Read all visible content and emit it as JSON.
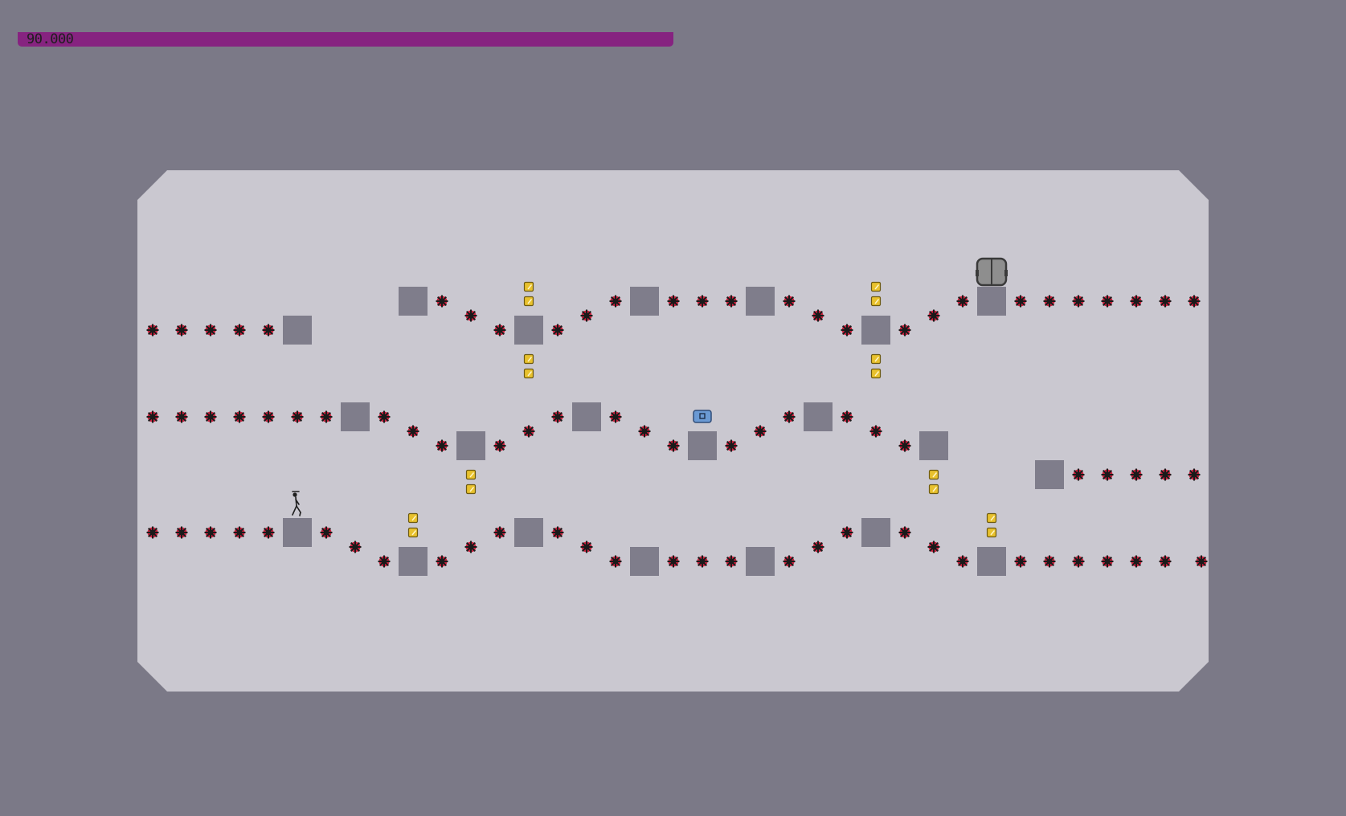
{
  "hud": {
    "time_remaining": "90.000"
  },
  "colors": {
    "background": "#7b7987",
    "arena": "#cac8d0",
    "timer_bar": "#862380",
    "tile": "#7f7d8b",
    "mine_core": "#1a1a1a",
    "mine_glow": "#c8102e",
    "gold": "#e8c12d",
    "exit_door": "#8e8e8e",
    "exit_switch": "#6b9ad4"
  },
  "icons": {
    "player": "ninja-stick-figure-icon",
    "mine": "toggle-mine-icon",
    "gold": "gold-square-icon",
    "exit_door": "exit-door-icon",
    "exit_switch": "exit-switch-icon"
  }
}
